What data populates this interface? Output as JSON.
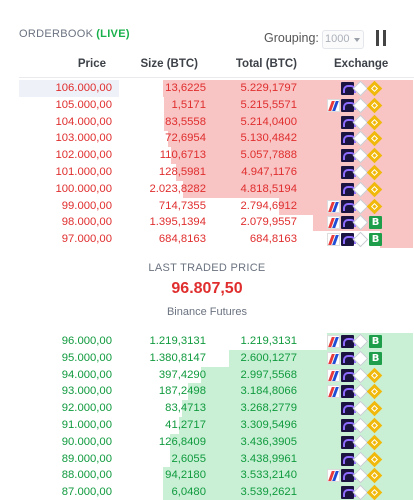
{
  "header": {
    "title": "ORDERBOOK",
    "live": "(LIVE)",
    "grouping_label": "Grouping:",
    "grouping_value": "1000"
  },
  "columns": {
    "price": "Price",
    "size": "Size (BTC)",
    "total": "Total (BTC)",
    "exchange": "Exchange"
  },
  "asks": [
    {
      "price": "106.000,00",
      "size": "13,6225",
      "total": "5.229,1797",
      "depth": 1.0,
      "exchanges": [
        "kraken",
        "deribit",
        "binance"
      ]
    },
    {
      "price": "105.000,00",
      "size": "1,5171",
      "total": "5.215,5571",
      "depth": 0.997,
      "exchanges": [
        "bitmex",
        "kraken",
        "deribit",
        "binance"
      ]
    },
    {
      "price": "104.000,00",
      "size": "83,5558",
      "total": "5.214,0400",
      "depth": 0.997,
      "exchanges": [
        "kraken",
        "deribit",
        "binance"
      ]
    },
    {
      "price": "103.000,00",
      "size": "72,6954",
      "total": "5.130,4842",
      "depth": 0.981,
      "exchanges": [
        "kraken",
        "deribit",
        "binance"
      ]
    },
    {
      "price": "102.000,00",
      "size": "110,6713",
      "total": "5.057,7888",
      "depth": 0.967,
      "exchanges": [
        "kraken",
        "deribit",
        "binance"
      ]
    },
    {
      "price": "101.000,00",
      "size": "128,5981",
      "total": "4.947,1176",
      "depth": 0.946,
      "exchanges": [
        "kraken",
        "deribit",
        "binance"
      ]
    },
    {
      "price": "100.000,00",
      "size": "2.023,8282",
      "total": "4.818,5194",
      "depth": 0.921,
      "exchanges": [
        "kraken",
        "deribit",
        "binance"
      ]
    },
    {
      "price": "99.000,00",
      "size": "714,7355",
      "total": "2.794,6912",
      "depth": 0.534,
      "exchanges": [
        "bitmex",
        "kraken",
        "deribit",
        "binance"
      ]
    },
    {
      "price": "98.000,00",
      "size": "1.395,1394",
      "total": "2.079,9557",
      "depth": 0.398,
      "exchanges": [
        "bitmex",
        "kraken",
        "deribit",
        "bybit"
      ]
    },
    {
      "price": "97.000,00",
      "size": "684,8163",
      "total": "684,8163",
      "depth": 0.131,
      "exchanges": [
        "bitmex",
        "kraken",
        "deribit",
        "bybit"
      ]
    }
  ],
  "last_traded": {
    "label": "LAST TRADED PRICE",
    "price": "96.807,50",
    "exchange": "Binance Futures"
  },
  "bids": [
    {
      "price": "96.000,00",
      "size": "1.219,3131",
      "total": "1.219,3131",
      "depth": 0.344,
      "exchanges": [
        "bitmex",
        "kraken",
        "deribit",
        "bybit"
      ]
    },
    {
      "price": "95.000,00",
      "size": "1.380,8147",
      "total": "2.600,1277",
      "depth": 0.735,
      "exchanges": [
        "bitmex",
        "kraken",
        "deribit",
        "bybit"
      ]
    },
    {
      "price": "94.000,00",
      "size": "397,4290",
      "total": "2.997,5568",
      "depth": 0.847,
      "exchanges": [
        "bitmex",
        "kraken",
        "deribit",
        "binance"
      ]
    },
    {
      "price": "93.000,00",
      "size": "187,2498",
      "total": "3.184,8066",
      "depth": 0.9,
      "exchanges": [
        "bitmex",
        "kraken",
        "deribit",
        "binance"
      ]
    },
    {
      "price": "92.000,00",
      "size": "83,4713",
      "total": "3.268,2779",
      "depth": 0.923,
      "exchanges": [
        "kraken",
        "deribit",
        "binance"
      ]
    },
    {
      "price": "91.000,00",
      "size": "41,2717",
      "total": "3.309,5496",
      "depth": 0.935,
      "exchanges": [
        "kraken",
        "deribit",
        "binance"
      ]
    },
    {
      "price": "90.000,00",
      "size": "126,8409",
      "total": "3.436,3905",
      "depth": 0.971,
      "exchanges": [
        "kraken",
        "deribit",
        "binance"
      ]
    },
    {
      "price": "89.000,00",
      "size": "2,6055",
      "total": "3.438,9961",
      "depth": 0.972,
      "exchanges": [
        "kraken",
        "deribit",
        "binance"
      ]
    },
    {
      "price": "88.000,00",
      "size": "94,2180",
      "total": "3.533,2140",
      "depth": 0.998,
      "exchanges": [
        "bitmex",
        "kraken",
        "deribit",
        "binance"
      ]
    },
    {
      "price": "87.000,00",
      "size": "6,0480",
      "total": "3.539,2621",
      "depth": 1.0,
      "exchanges": [
        "kraken",
        "deribit",
        "binance"
      ]
    }
  ]
}
